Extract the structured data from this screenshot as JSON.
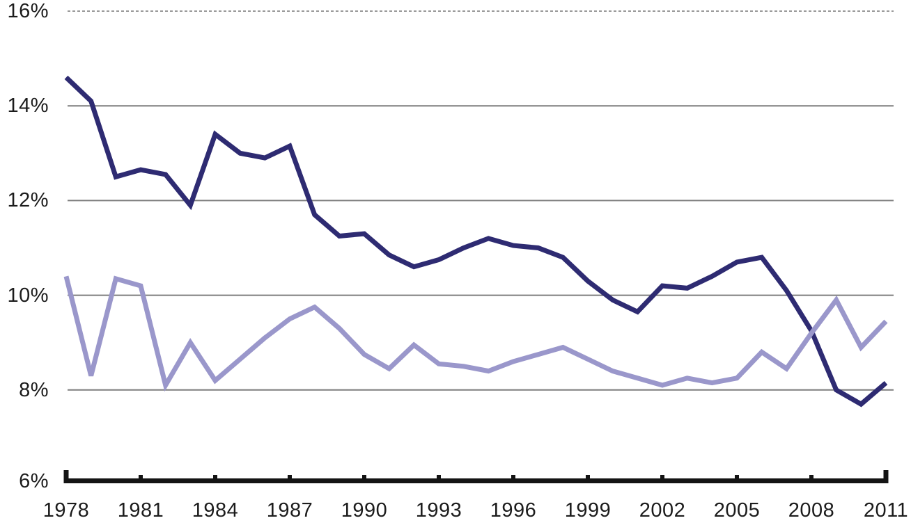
{
  "chart_data": {
    "type": "line",
    "title": "",
    "xlabel": "",
    "ylabel": "",
    "legend": "none",
    "grid": "horizontal",
    "top_gridline_style": "dashed",
    "xlim": [
      1978,
      2011
    ],
    "ylim": [
      6,
      16
    ],
    "x": [
      1978,
      1979,
      1980,
      1981,
      1982,
      1983,
      1984,
      1985,
      1986,
      1987,
      1988,
      1989,
      1990,
      1991,
      1992,
      1993,
      1994,
      1995,
      1996,
      1997,
      1998,
      1999,
      2000,
      2001,
      2002,
      2003,
      2004,
      2005,
      2006,
      2007,
      2008,
      2009,
      2010,
      2011
    ],
    "series": [
      {
        "name": "dark-navy",
        "color": "#2e2b72",
        "values": [
          14.6,
          14.1,
          12.5,
          12.65,
          12.55,
          11.9,
          13.4,
          13.0,
          12.9,
          13.15,
          11.7,
          11.25,
          11.3,
          10.85,
          10.6,
          10.75,
          11.0,
          11.2,
          11.05,
          11.0,
          10.8,
          10.3,
          9.9,
          9.65,
          10.2,
          10.15,
          10.4,
          10.7,
          10.8,
          10.1,
          9.25,
          8.0,
          7.7,
          8.15
        ]
      },
      {
        "name": "light-lavender",
        "color": "#9a97cb",
        "values": [
          10.4,
          8.3,
          10.35,
          10.2,
          8.1,
          9.0,
          8.2,
          8.65,
          9.1,
          9.5,
          9.75,
          9.3,
          8.75,
          8.45,
          8.95,
          8.55,
          8.5,
          8.4,
          8.6,
          8.75,
          8.9,
          8.65,
          8.4,
          8.25,
          8.1,
          8.25,
          8.15,
          8.25,
          8.8,
          8.45,
          9.2,
          9.9,
          8.9,
          9.45
        ]
      }
    ],
    "x_ticks": [
      1978,
      1981,
      1984,
      1987,
      1990,
      1993,
      1996,
      1999,
      2002,
      2005,
      2008,
      2011
    ],
    "x_tick_labels": [
      "1978",
      "1981",
      "1984",
      "1987",
      "1990",
      "1993",
      "1996",
      "1999",
      "2002",
      "2005",
      "2008",
      "2011"
    ],
    "y_ticks": [
      16,
      14,
      12,
      10,
      8,
      6
    ],
    "y_tick_labels": [
      "16%",
      "14%",
      "12%",
      "10%",
      "8%",
      "6%"
    ]
  },
  "colors": {
    "background": "#ffffff",
    "gridline": "#7d7d7d",
    "dashed_topline": "#777777",
    "axis": "#141414",
    "label_text": "#1c1c1c"
  }
}
